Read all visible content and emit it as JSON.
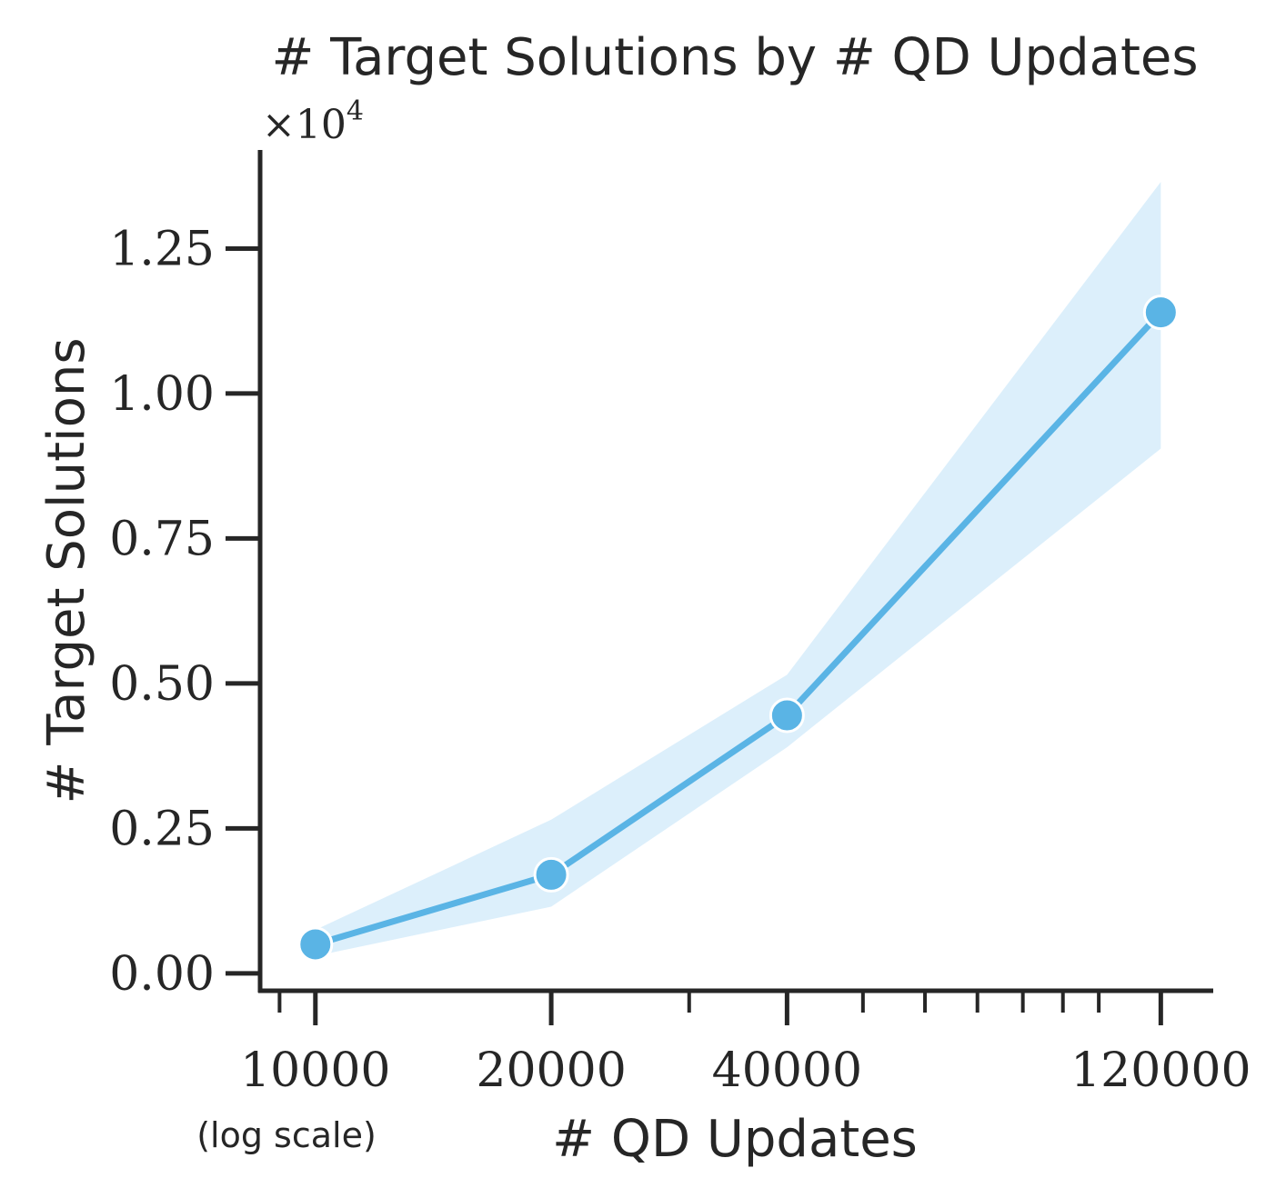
{
  "chart_data": {
    "type": "line",
    "title": "# Target Solutions by # QD Updates",
    "xlabel": "# QD Updates",
    "xlabel_note": "(log scale)",
    "ylabel": "# Target Solutions",
    "y_multiplier_label": "×10",
    "y_multiplier_exponent": "4",
    "x_scale": "log",
    "x": [
      10000,
      20000,
      40000,
      120000
    ],
    "xticks": [
      10000,
      20000,
      40000,
      120000
    ],
    "xtick_labels": [
      "10000",
      "20000",
      "40000",
      "120000"
    ],
    "x_minor_ticks": [
      9000,
      30000,
      50000,
      60000,
      70000,
      80000,
      90000,
      100000
    ],
    "xlim": [
      8500,
      140000
    ],
    "ylim": [
      -0.03,
      1.42
    ],
    "yticks": [
      0.0,
      0.25,
      0.5,
      0.75,
      1.0,
      1.25
    ],
    "ytick_labels": [
      "0.00",
      "0.25",
      "0.50",
      "0.75",
      "1.00",
      "1.25"
    ],
    "grid": false,
    "series": [
      {
        "values": [
          0.05,
          0.17,
          0.445,
          1.14
        ],
        "ci_lower": [
          0.03,
          0.115,
          0.39,
          0.905
        ],
        "ci_upper": [
          0.075,
          0.265,
          0.515,
          1.365
        ],
        "color": "#5ab4e5",
        "band_color": "#dcefFb"
      }
    ],
    "axis_color": "#262626"
  }
}
